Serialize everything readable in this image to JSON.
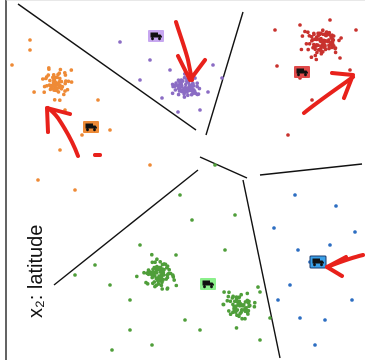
{
  "axis": {
    "y_label": "x₂: latitude"
  },
  "colors": {
    "purple": "#8b6cc4",
    "red": "#c8322e",
    "orange": "#ee8a36",
    "green": "#4f9e3a",
    "blue": "#2d6ec2",
    "annotation": "#e8211b",
    "boundary": "#111111"
  },
  "clusters": [
    {
      "name": "purple-cluster",
      "color": "purple",
      "truck_icon": "truck-icon"
    },
    {
      "name": "red-cluster",
      "color": "red",
      "truck_icon": "truck-icon"
    },
    {
      "name": "orange-cluster",
      "color": "orange",
      "truck_icon": "truck-icon"
    },
    {
      "name": "green-cluster",
      "color": "green",
      "truck_icon": "truck-icon"
    },
    {
      "name": "blue-cluster",
      "color": "blue",
      "truck_icon": "truck-icon"
    }
  ]
}
